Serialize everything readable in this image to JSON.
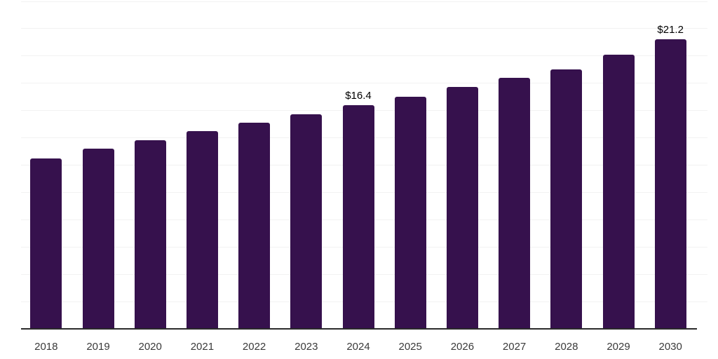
{
  "chart_data": {
    "type": "bar",
    "title": "",
    "xlabel": "",
    "ylabel": "",
    "categories": [
      "2018",
      "2019",
      "2020",
      "2021",
      "2022",
      "2023",
      "2024",
      "2025",
      "2026",
      "2027",
      "2028",
      "2029",
      "2030"
    ],
    "values": [
      12.5,
      13.2,
      13.8,
      14.5,
      15.1,
      15.7,
      16.4,
      17.0,
      17.7,
      18.4,
      19.0,
      20.1,
      21.2
    ],
    "data_labels": [
      "",
      "",
      "",
      "",
      "",
      "",
      "$16.4",
      "",
      "",
      "",
      "",
      "",
      "$21.2"
    ],
    "ylim": [
      0,
      24
    ],
    "y_grid_step": 2,
    "grid": "horizontal-only",
    "legend_position": "none",
    "y_tick_labels_visible": false,
    "colors": {
      "bar": "#36114D",
      "gridline": "#f2f2f2",
      "axis_line": "#2b2b2b",
      "tick_label": "#3a3a3a",
      "data_label": "#000000",
      "background": "#ffffff"
    }
  }
}
